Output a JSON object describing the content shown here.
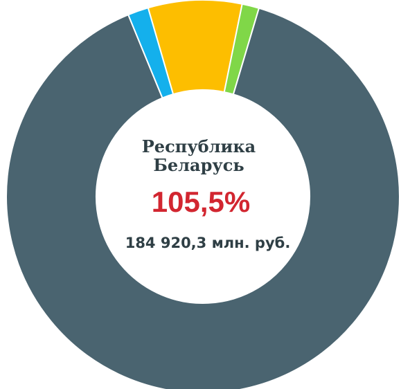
{
  "chart_data": {
    "type": "donut",
    "values": [
      7.7,
      1.4,
      89.2,
      1.7
    ],
    "colors": [
      "#fdbe00",
      "#80d748",
      "#4a6470",
      "#14b0ec"
    ],
    "center_title": [
      "Республика",
      "Беларусь"
    ],
    "center_value": "105,5%",
    "center_subtitle": "184 920,3 млн. руб."
  }
}
